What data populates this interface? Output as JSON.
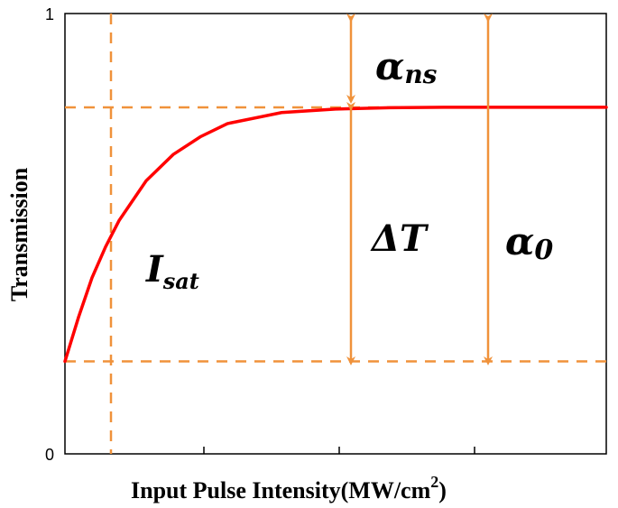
{
  "chart_data": {
    "type": "line",
    "title": "",
    "xlabel": "Input Pulse Intensity(MW/cm",
    "xlabel_superscript": "2",
    "xlabel_close": ")",
    "ylabel": "Transmission",
    "y_ticks": [
      "0",
      "1"
    ],
    "x_tick_labels": [],
    "ylim": [
      0,
      1
    ],
    "xlim": [
      0,
      10
    ],
    "grid": false,
    "series": [
      {
        "color": "#ff0000",
        "x": [
          0,
          0.25,
          0.5,
          0.75,
          1.0,
          1.5,
          2.0,
          2.5,
          3.0,
          4.0,
          5.0,
          6.0,
          7.0,
          8.0,
          9.0,
          10.0
        ],
        "y": [
          0.21,
          0.31,
          0.4,
          0.47,
          0.53,
          0.62,
          0.68,
          0.72,
          0.75,
          0.775,
          0.783,
          0.786,
          0.787,
          0.787,
          0.787,
          0.787
        ]
      }
    ],
    "reference_lines": {
      "color": "#f0923b",
      "y_upper": 0.787,
      "y_lower": 0.21,
      "x_sat": 0.85
    },
    "annotations": {
      "alpha_ns": {
        "symbol": "α",
        "sub": "ns"
      },
      "delta_t": {
        "symbol": "ΔT"
      },
      "alpha_0": {
        "symbol": "α",
        "sub": "0"
      },
      "i_sat": {
        "symbol": "I",
        "sub": "sat"
      }
    }
  }
}
